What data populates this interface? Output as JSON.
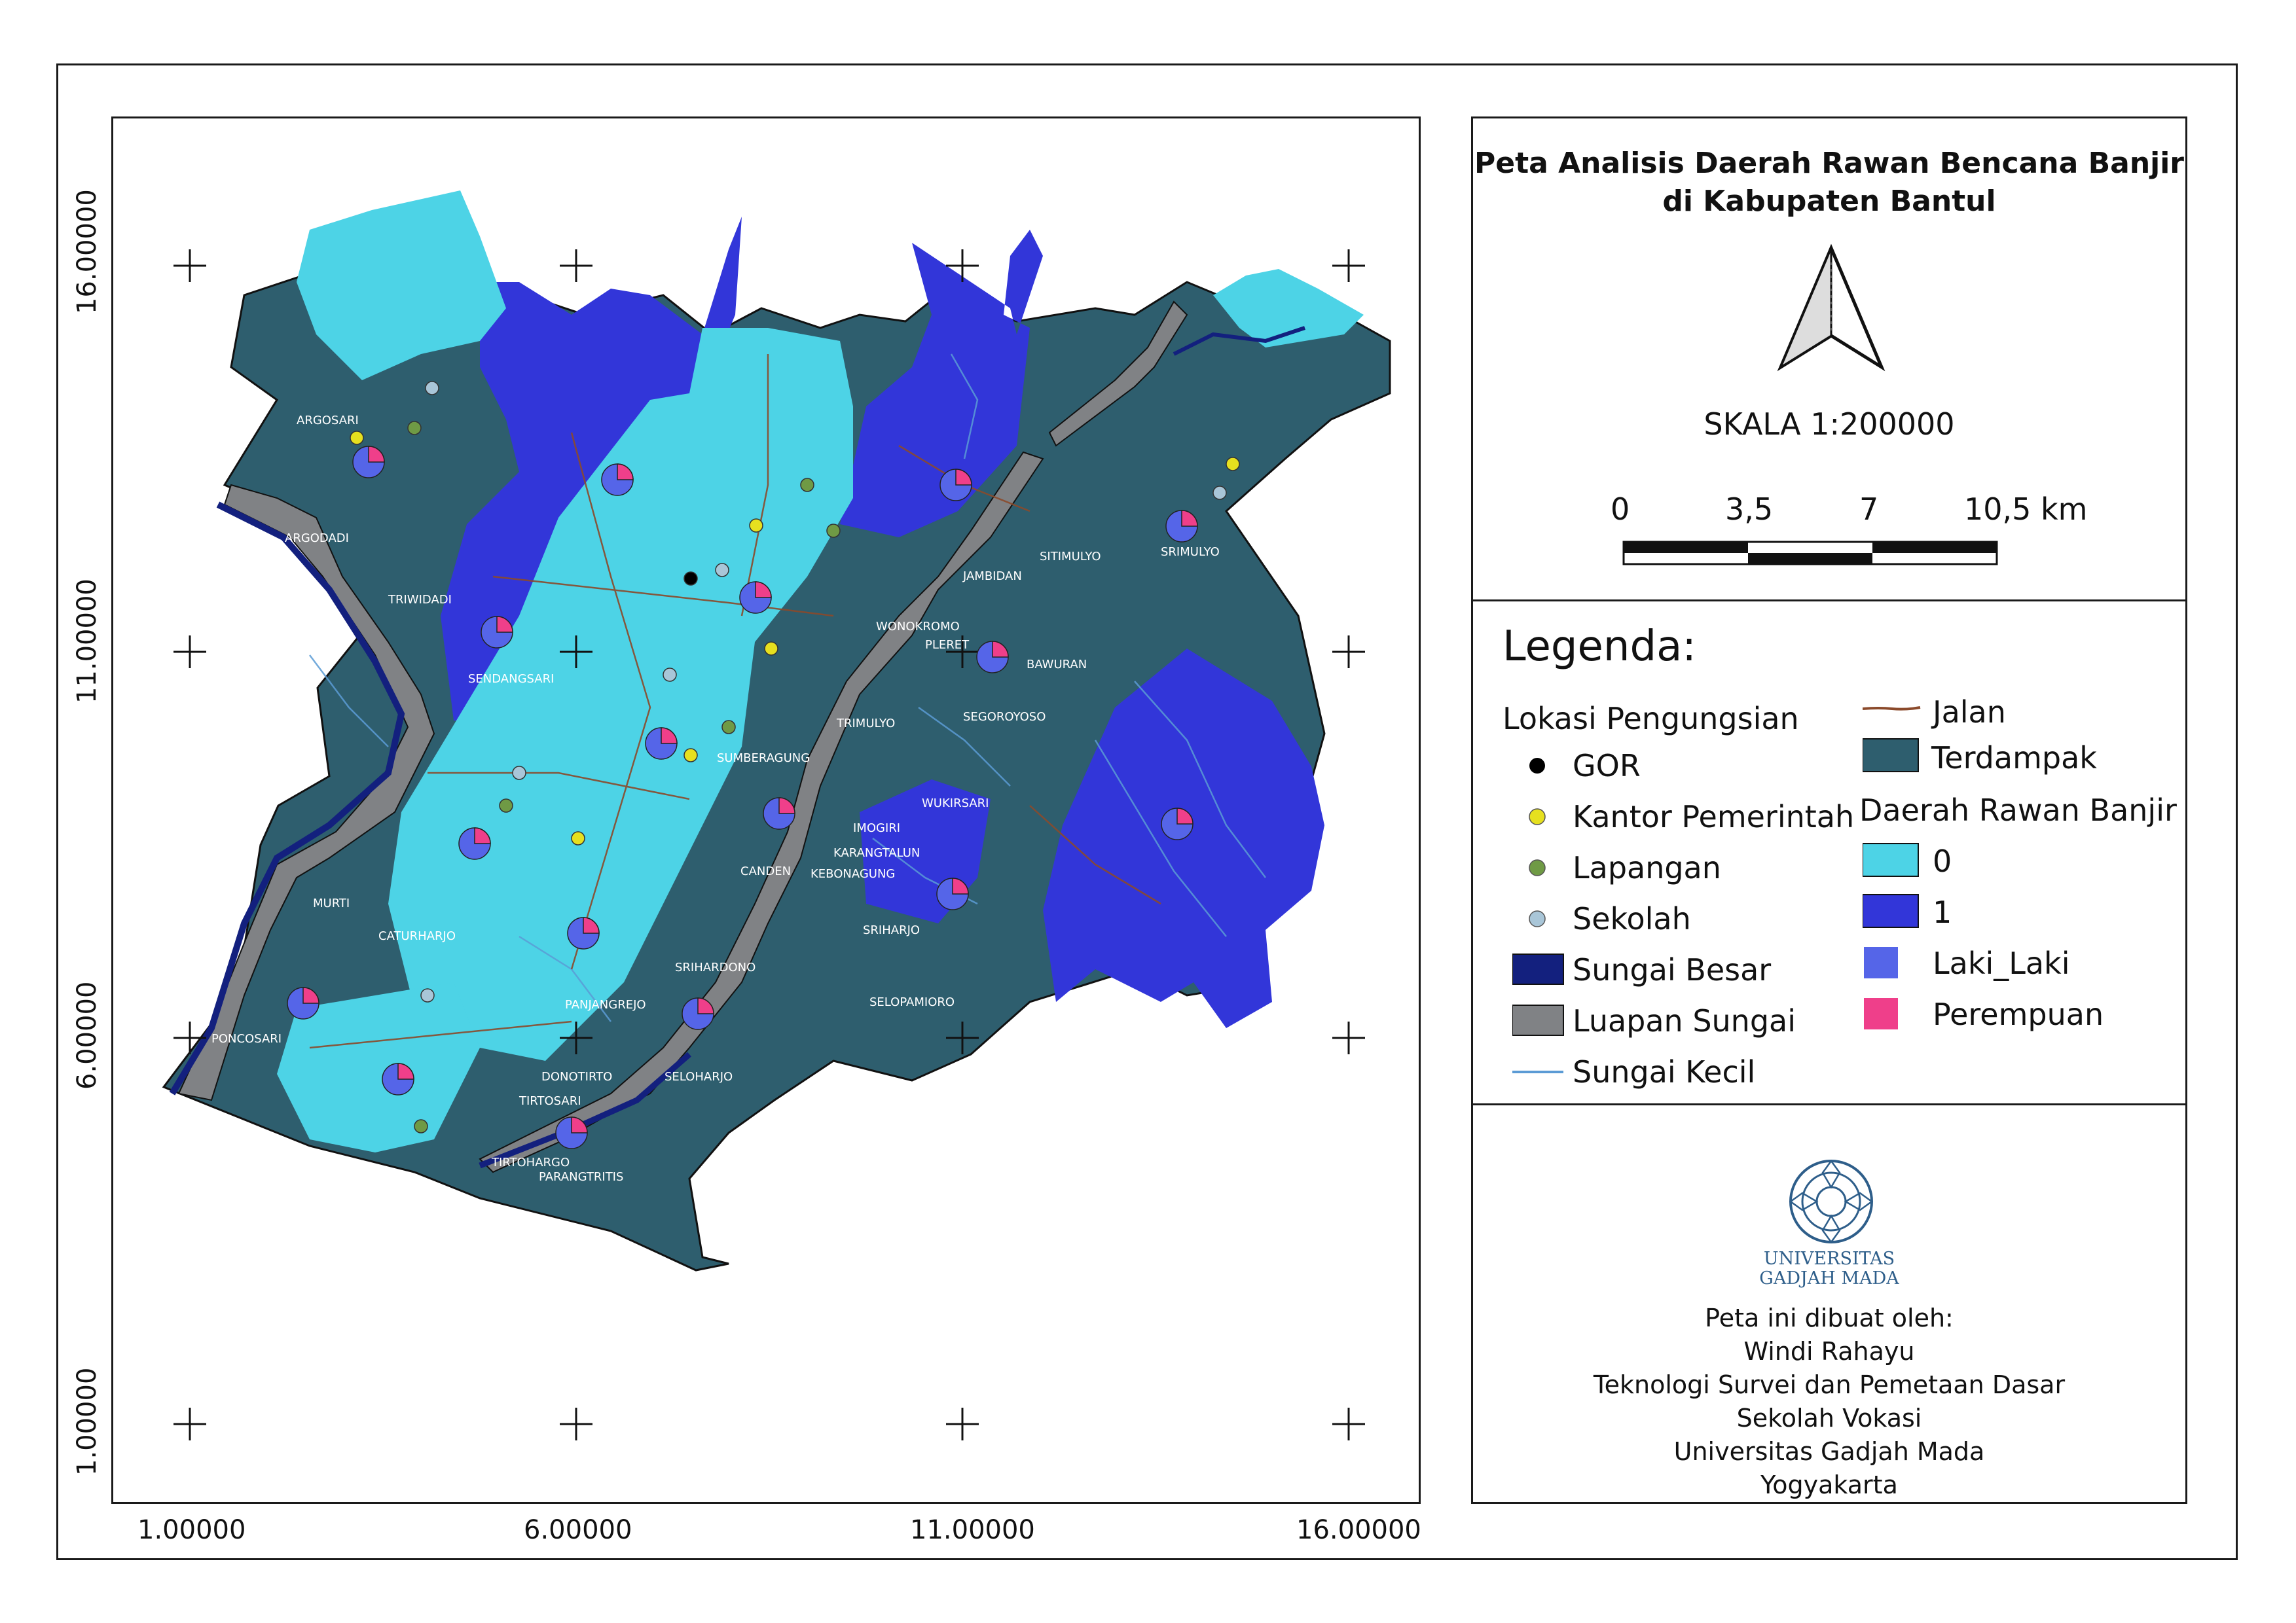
{
  "map": {
    "title_line1": "Peta Analisis Daerah Rawan Bencana Banjir",
    "title_line2": "di Kabupaten Bantul",
    "scale_text": "SKALA 1:200000",
    "scalebar_labels": [
      "0",
      "3,5",
      "7",
      "10,5 km"
    ],
    "grid_x_labels": [
      "1.00000",
      "6.00000",
      "11.00000",
      "16.00000"
    ],
    "grid_y_labels": [
      "16.00000",
      "11.00000",
      "6.00000",
      "1.00000"
    ],
    "place_names": [
      "ARGOSARI",
      "ARGODADI",
      "TRIWIDADI",
      "SENDANGSARI",
      "SUMBERAGUNG",
      "JAMBIDAN",
      "SITIMULYO",
      "SRIMULYO",
      "WONOKROMO",
      "PLERET",
      "BAWURAN",
      "TRIMULYO",
      "SEGOROYOSO",
      "WUKIRSARI",
      "IMOGIRI",
      "KARANGTALUN",
      "KEBONAGUNG",
      "CANDEN",
      "SRIHARJO",
      "SELOPAMIORO",
      "SRIHARDONO",
      "PANJANGREJO",
      "DONOTIRTO",
      "TIRTOSARI",
      "SELOHARJO",
      "TIRTOHARGO",
      "PARANGTRITIS",
      "CATURHARJO",
      "MURTI",
      "PONCOSARI"
    ]
  },
  "legend": {
    "heading": "Legenda:",
    "group_pengungsian": "Lokasi Pengungsian",
    "items_left": [
      {
        "label": "GOR",
        "color": "#000000"
      },
      {
        "label": "Kantor Pemerintah",
        "color": "#e6e01f"
      },
      {
        "label": "Lapangan",
        "color": "#6f9a45"
      },
      {
        "label": "Sekolah",
        "color": "#a9c6d8"
      },
      {
        "label": "Sungai Besar",
        "color": "#13207e"
      },
      {
        "label": "Luapan Sungai",
        "color": "#808285"
      },
      {
        "label": "Sungai Kecil",
        "color": "#5b9bd5"
      }
    ],
    "jalan": {
      "label": "Jalan",
      "color": "#8b4a2b"
    },
    "terdampak": {
      "label": "Terdampak",
      "color": "#2e5e6e"
    },
    "group_rawan": "Daerah Rawan Banjir",
    "rawan_items": [
      {
        "label": "0",
        "color": "#4dd3e6"
      },
      {
        "label": "1",
        "color": "#3236d9"
      }
    ],
    "pie_items": [
      {
        "label": "Laki_Laki",
        "color": "#5565e8"
      },
      {
        "label": "Perempuan",
        "color": "#ef3f8a"
      }
    ]
  },
  "credits": {
    "logo_text_1": "UNIVERSITAS",
    "logo_text_2": "GADJAH MADA",
    "lines": [
      "Peta ini dibuat oleh:",
      "Windi Rahayu",
      "Teknologi Survei dan Pemetaan Dasar",
      "Sekolah Vokasi",
      "Universitas Gadjah Mada",
      "Yogyakarta"
    ]
  }
}
